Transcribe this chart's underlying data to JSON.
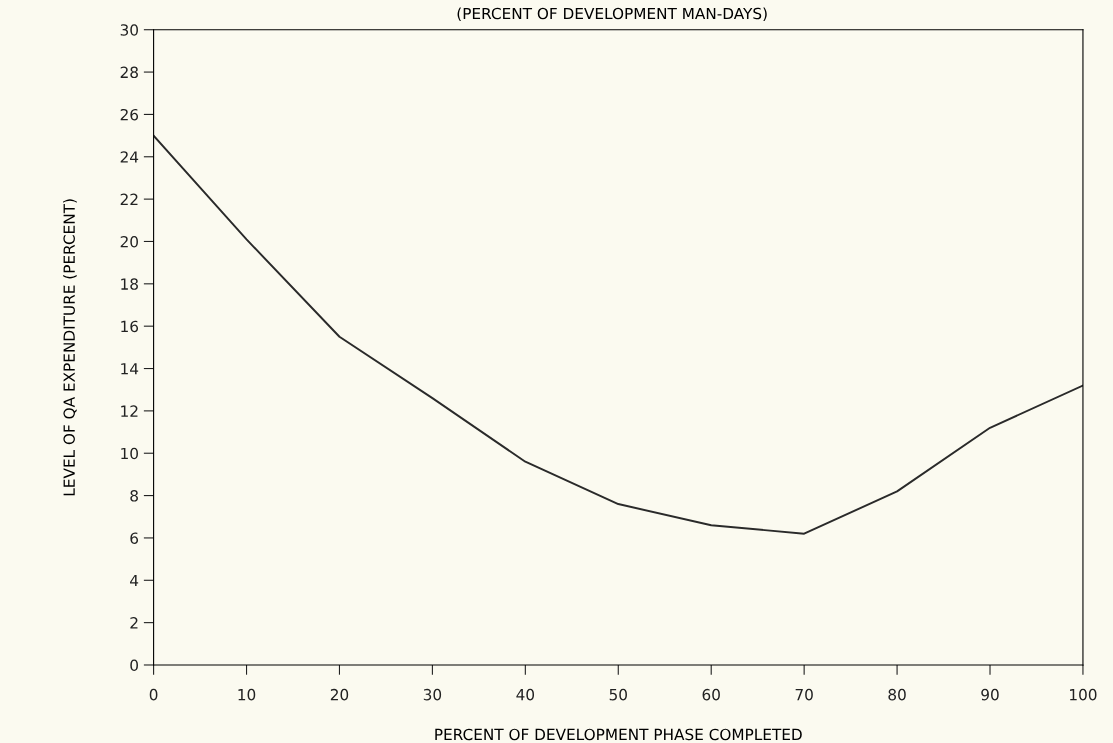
{
  "chart_data": {
    "type": "line",
    "subtitle": "(PERCENT OF DEVELOPMENT MAN-DAYS)",
    "xlabel": "PERCENT OF DEVELOPMENT PHASE COMPLETED",
    "ylabel": "LEVEL OF QA EXPENDITURE (PERCENT)",
    "x": [
      0,
      10,
      20,
      30,
      40,
      50,
      60,
      70,
      80,
      90,
      100
    ],
    "series": [
      {
        "color": "#2a2a2a",
        "values": [
          25,
          20.1,
          15.5,
          12.6,
          9.6,
          7.6,
          6.6,
          6.2,
          8.2,
          11.2,
          13.2
        ]
      }
    ],
    "xlim": [
      0,
      100
    ],
    "ylim": [
      0,
      30
    ],
    "xticks": [
      0,
      10,
      20,
      30,
      40,
      50,
      60,
      70,
      80,
      90,
      100
    ],
    "yticks": [
      0,
      2,
      4,
      6,
      8,
      10,
      12,
      14,
      16,
      18,
      20,
      22,
      24,
      26,
      28,
      30
    ],
    "grid": false,
    "legend": false,
    "marker": "none",
    "line_style": "solid"
  }
}
